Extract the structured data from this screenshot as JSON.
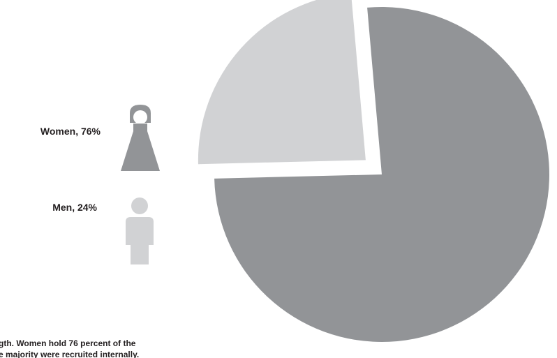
{
  "chart_data": {
    "type": "pie",
    "series": [
      {
        "values": [
          76,
          24
        ],
        "categories": [
          "Women",
          "Men"
        ]
      }
    ],
    "slices": [
      {
        "label": "Women, 76%",
        "value": 76,
        "color": "#929497"
      },
      {
        "label": "Men, 24%",
        "value": 24,
        "color": "#d1d2d4"
      }
    ],
    "start_angle_deg": -95,
    "exploded_slice": "Men",
    "legend_placement": "left"
  },
  "icons": {
    "women": {
      "name": "woman-figure-icon",
      "color": "#929497"
    },
    "men": {
      "name": "man-figure-icon",
      "color": "#d1d2d4"
    }
  },
  "caption": {
    "line1": "gth. Women hold 76 percent of the",
    "line2": "e majority were recruited internally."
  }
}
